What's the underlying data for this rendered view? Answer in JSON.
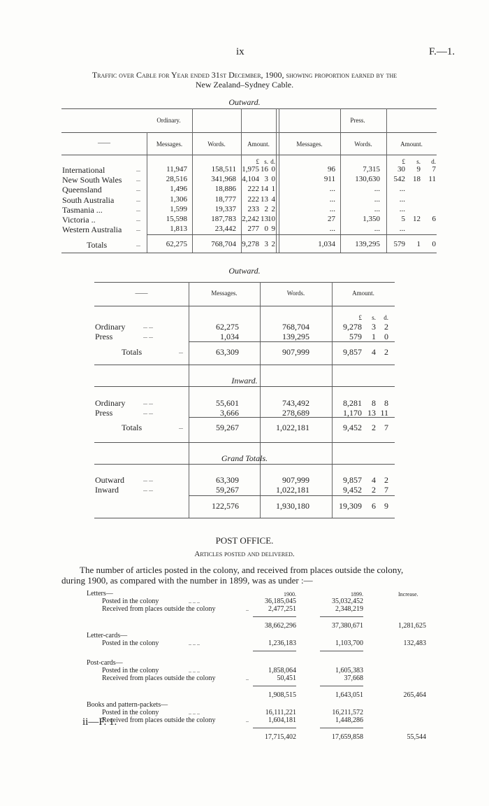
{
  "header": {
    "page_num": "ix",
    "ref": "F.—1."
  },
  "title": {
    "line1": "Traffic over Cable for Year ended 31st December, 1900, showing proportion earned by the",
    "line2": "New Zealand–Sydney Cable."
  },
  "table1": {
    "caption": "Outward.",
    "group_ordinary": "Ordinary.",
    "group_press": "Press.",
    "dash": "——",
    "col_messages": "Messages.",
    "col_words": "Words.",
    "col_amount": "Amount.",
    "currency": [
      "£",
      "s.",
      "d."
    ],
    "rows": [
      {
        "label": "International",
        "dots": "...",
        "o_msg": "11,947",
        "o_words": "158,511",
        "o_amt": [
          "1,975",
          "16",
          "0"
        ],
        "p_msg": "96",
        "p_words": "7,315",
        "p_amt": [
          "30",
          "9",
          "7"
        ]
      },
      {
        "label": "New South Wales",
        "dots": "...",
        "o_msg": "28,516",
        "o_words": "341,968",
        "o_amt": [
          "4,104",
          "3",
          "0"
        ],
        "p_msg": "911",
        "p_words": "130,630",
        "p_amt": [
          "542",
          "18",
          "11"
        ]
      },
      {
        "label": "Queensland",
        "dots": "...",
        "o_msg": "1,496",
        "o_words": "18,886",
        "o_amt": [
          "222",
          "14",
          "1"
        ],
        "p_msg": "...",
        "p_words": "...",
        "p_amt": [
          "...",
          "",
          ""
        ]
      },
      {
        "label": "South Australia",
        "dots": "...",
        "o_msg": "1,306",
        "o_words": "18,777",
        "o_amt": [
          "222",
          "13",
          "4"
        ],
        "p_msg": "...",
        "p_words": "...",
        "p_amt": [
          "...",
          "",
          ""
        ]
      },
      {
        "label": "Tasmania ...",
        "dots": "...",
        "o_msg": "1,599",
        "o_words": "19,337",
        "o_amt": [
          "233",
          "2",
          "2"
        ],
        "p_msg": "...",
        "p_words": "...",
        "p_amt": [
          "...",
          "",
          ""
        ]
      },
      {
        "label": "Victoria   ..",
        "dots": "...",
        "o_msg": "15,598",
        "o_words": "187,783",
        "o_amt": [
          "2,242",
          "13",
          "10"
        ],
        "p_msg": "27",
        "p_words": "1,350",
        "p_amt": [
          "5",
          "12",
          "6"
        ]
      },
      {
        "label": "Western Australia",
        "dots": "...",
        "o_msg": "1,813",
        "o_words": "23,442",
        "o_amt": [
          "277",
          "0",
          "9"
        ],
        "p_msg": "...",
        "p_words": "...",
        "p_amt": [
          "...",
          "",
          ""
        ]
      }
    ],
    "totals": {
      "label": "Totals",
      "dots": "...",
      "o_msg": "62,275",
      "o_words": "768,704",
      "o_amt": [
        "9,278",
        "3",
        "2"
      ],
      "p_msg": "1,034",
      "p_words": "139,295",
      "p_amt": [
        "579",
        "1",
        "0"
      ]
    }
  },
  "table2": {
    "dash": "——",
    "col_messages": "Messages.",
    "col_words": "Words.",
    "col_amount": "Amount.",
    "currency": [
      "£",
      "s.",
      "d."
    ],
    "sections": [
      {
        "caption": "Outward.",
        "rows": [
          {
            "label": "Ordinary",
            "dots": "...    ...",
            "msg": "62,275",
            "words": "768,704",
            "amt": [
              "9,278",
              "3",
              "2"
            ]
          },
          {
            "label": "Press",
            "dots": "...    ...",
            "msg": "1,034",
            "words": "139,295",
            "amt": [
              "579",
              "1",
              "0"
            ]
          }
        ],
        "total": {
          "label": "Totals",
          "dots": "...",
          "msg": "63,309",
          "words": "907,999",
          "amt": [
            "9,857",
            "4",
            "2"
          ]
        }
      },
      {
        "caption": "Inward.",
        "rows": [
          {
            "label": "Ordinary",
            "dots": "...    ...",
            "msg": "55,601",
            "words": "743,492",
            "amt": [
              "8,281",
              "8",
              "8"
            ]
          },
          {
            "label": "Press",
            "dots": "...    ...",
            "msg": "3,666",
            "words": "278,689",
            "amt": [
              "1,170",
              "13",
              "11"
            ]
          }
        ],
        "total": {
          "label": "Totals",
          "dots": "...",
          "msg": "59,267",
          "words": "1,022,181",
          "amt": [
            "9,452",
            "2",
            "7"
          ]
        }
      },
      {
        "caption": "Grand Totals.",
        "rows": [
          {
            "label": "Outward",
            "dots": "...    ...",
            "msg": "63,309",
            "words": "907,999",
            "amt": [
              "9,857",
              "4",
              "2"
            ]
          },
          {
            "label": "Inward",
            "dots": "...    ...",
            "msg": "59,267",
            "words": "1,022,181",
            "amt": [
              "9,452",
              "2",
              "7"
            ]
          }
        ],
        "total": {
          "label": "",
          "dots": "",
          "msg": "122,576",
          "words": "1,930,180",
          "amt": [
            "19,309",
            "6",
            "9"
          ]
        }
      }
    ]
  },
  "post": {
    "heading": "POST OFFICE.",
    "subheading": "Articles posted and delivered.",
    "para1": "The number of articles posted in the colony, and received from places outside the colony,",
    "para2": "during 1900, as compared with the number in 1899, was as under :—",
    "col_1900": "1900.",
    "col_1899": "1899.",
    "col_increase": "Increase.",
    "groups": [
      {
        "title": "Letters—",
        "items": [
          {
            "label": "Posted in the colony",
            "dots": "..    ..    ..",
            "v1900": "36,185,045",
            "v1899": "35,032,452"
          },
          {
            "label": "Received from places outside the colony",
            "dots": "..",
            "v1900": "2,477,251",
            "v1899": "2,348,219"
          }
        ],
        "total1900": "38,662,296",
        "total1899": "37,380,671",
        "increase": "1,281,625"
      },
      {
        "title": "Letter-cards—",
        "items": [
          {
            "label": "Posted in the colony",
            "dots": "..    ..    ..",
            "v1900": "1,236,183",
            "v1899": "1,103,700",
            "inc": "132,483"
          }
        ]
      },
      {
        "title": "Post-cards—",
        "items": [
          {
            "label": "Posted in the colony",
            "dots": "..    ..    ..",
            "v1900": "1,858,064",
            "v1899": "1,605,383"
          },
          {
            "label": "Received from places outside the colony",
            "dots": "..",
            "v1900": "50,451",
            "v1899": "37,668"
          }
        ],
        "total1900": "1,908,515",
        "total1899": "1,643,051",
        "increase": "265,464"
      },
      {
        "title": "Books and pattern-packets—",
        "items": [
          {
            "label": "Posted in the colony",
            "dots": "..    ..    ..",
            "v1900": "16,111,221",
            "v1899": "16,211,572"
          },
          {
            "label": "Received from places outside the colony",
            "dots": "..",
            "v1900": "1,604,181",
            "v1899": "1,448,286"
          }
        ],
        "total1900": "17,715,402",
        "total1899": "17,659,858",
        "increase": "55,544"
      }
    ]
  },
  "footer": {
    "signature": "ii—F. 1."
  }
}
